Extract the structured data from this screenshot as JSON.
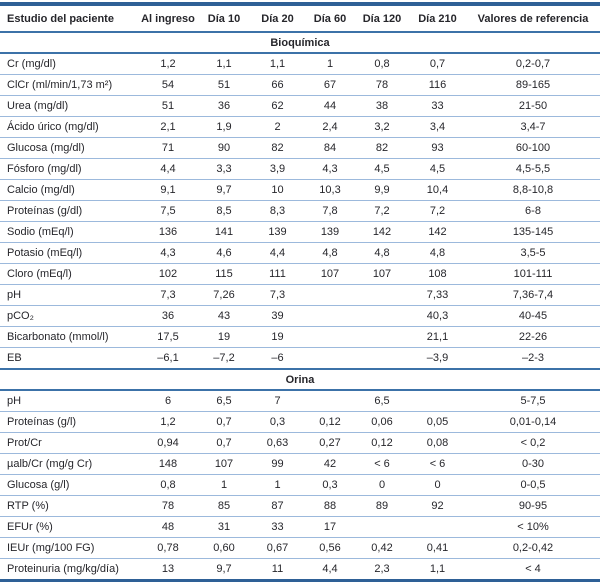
{
  "table": {
    "columns": [
      "Estudio del paciente",
      "Al ingreso",
      "Día 10",
      "Día 20",
      "Día 60",
      "Día 120",
      "Día 210",
      "Valores de referencia"
    ],
    "sections": [
      {
        "title": "Bioquímica",
        "rows": [
          {
            "label": "Cr (mg/dl)",
            "values": [
              "1,2",
              "1,1",
              "1,1",
              "1",
              "0,8",
              "0,7",
              "0,2-0,7"
            ]
          },
          {
            "label": "ClCr (ml/min/1,73 m²)",
            "values": [
              "54",
              "51",
              "66",
              "67",
              "78",
              "116",
              "89-165"
            ]
          },
          {
            "label": "Urea (mg/dl)",
            "values": [
              "51",
              "36",
              "62",
              "44",
              "38",
              "33",
              "21-50"
            ]
          },
          {
            "label": "Ácido úrico (mg/dl)",
            "values": [
              "2,1",
              "1,9",
              "2",
              "2,4",
              "3,2",
              "3,4",
              "3,4-7"
            ]
          },
          {
            "label": "Glucosa (mg/dl)",
            "values": [
              "71",
              "90",
              "82",
              "84",
              "82",
              "93",
              "60-100"
            ]
          },
          {
            "label": "Fósforo (mg/dl)",
            "values": [
              "4,4",
              "3,3",
              "3,9",
              "4,3",
              "4,5",
              "4,5",
              "4,5-5,5"
            ]
          },
          {
            "label": "Calcio (mg/dl)",
            "values": [
              "9,1",
              "9,7",
              "10",
              "10,3",
              "9,9",
              "10,4",
              "8,8-10,8"
            ]
          },
          {
            "label": "Proteínas (g/dl)",
            "values": [
              "7,5",
              "8,5",
              "8,3",
              "7,8",
              "7,2",
              "7,2",
              "6-8"
            ]
          },
          {
            "label": "Sodio (mEq/l)",
            "values": [
              "136",
              "141",
              "139",
              "139",
              "142",
              "142",
              "135-145"
            ]
          },
          {
            "label": "Potasio (mEq/l)",
            "values": [
              "4,3",
              "4,6",
              "4,4",
              "4,8",
              "4,8",
              "4,8",
              "3,5-5"
            ]
          },
          {
            "label": "Cloro (mEq/l)",
            "values": [
              "102",
              "115",
              "111",
              "107",
              "107",
              "108",
              "101-111"
            ]
          },
          {
            "label": "pH",
            "values": [
              "7,3",
              "7,26",
              "7,3",
              "",
              "",
              "7,33",
              "7,36-7,4"
            ]
          },
          {
            "label": "pCO₂",
            "values": [
              "36",
              "43",
              "39",
              "",
              "",
              "40,3",
              "40-45"
            ]
          },
          {
            "label": "Bicarbonato (mmol/l)",
            "values": [
              "17,5",
              "19",
              "19",
              "",
              "",
              "21,1",
              "22-26"
            ]
          },
          {
            "label": "EB",
            "values": [
              "–6,1",
              "–7,2",
              "–6",
              "",
              "",
              "–3,9",
              "–2-3"
            ]
          }
        ]
      },
      {
        "title": "Orina",
        "rows": [
          {
            "label": "pH",
            "values": [
              "6",
              "6,5",
              "7",
              "",
              "6,5",
              "",
              "5-7,5"
            ]
          },
          {
            "label": "Proteínas (g/l)",
            "values": [
              "1,2",
              "0,7",
              "0,3",
              "0,12",
              "0,06",
              "0,05",
              "0,01-0,14"
            ]
          },
          {
            "label": "Prot/Cr",
            "values": [
              "0,94",
              "0,7",
              "0,63",
              "0,27",
              "0,12",
              "0,08",
              "< 0,2"
            ]
          },
          {
            "label": "µalb/Cr (mg/g Cr)",
            "values": [
              "148",
              "107",
              "99",
              "42",
              "< 6",
              "< 6",
              "0-30"
            ]
          },
          {
            "label": "Glucosa (g/l)",
            "values": [
              "0,8",
              "1",
              "1",
              "0,3",
              "0",
              "0",
              "0-0,5"
            ]
          },
          {
            "label": "RTP (%)",
            "values": [
              "78",
              "85",
              "87",
              "88",
              "89",
              "92",
              "90-95"
            ]
          },
          {
            "label": "EFUr (%)",
            "values": [
              "48",
              "31",
              "33",
              "17",
              "",
              "",
              "< 10%"
            ]
          },
          {
            "label": "IEUr (mg/100 FG)",
            "values": [
              "0,78",
              "0,60",
              "0,67",
              "0,56",
              "0,42",
              "0,41",
              "0,2-0,42"
            ]
          },
          {
            "label": "Proteinuria (mg/kg/día)",
            "values": [
              "13",
              "9,7",
              "11",
              "4,4",
              "2,3",
              "1,1",
              "< 4"
            ]
          }
        ]
      }
    ]
  },
  "colors": {
    "line_strong": "#2e6096",
    "line_mid": "#3c72a8",
    "line_light": "#9cb9dc",
    "text": "#26262b"
  }
}
